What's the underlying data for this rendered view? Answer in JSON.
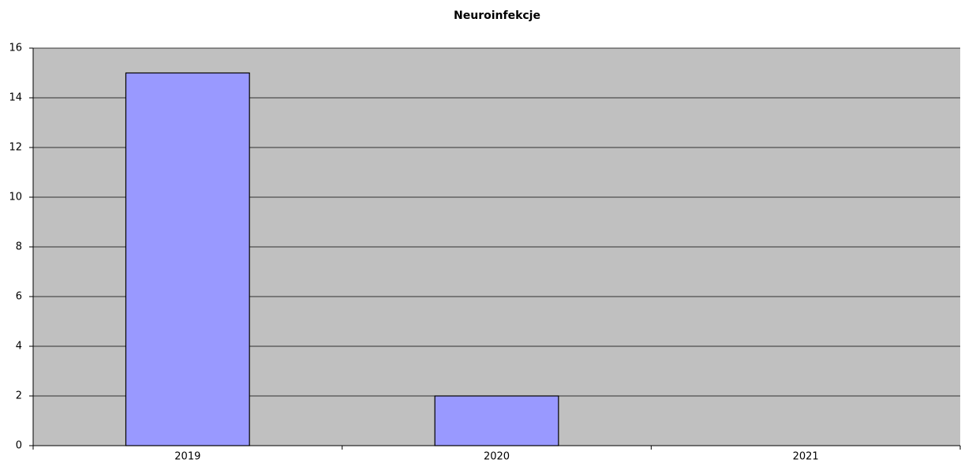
{
  "chart_data": {
    "type": "bar",
    "title": "Neuroinfekcje",
    "categories": [
      "2019",
      "2020",
      "2021"
    ],
    "values": [
      15,
      2,
      0
    ],
    "color": "#9999ff",
    "ylim": [
      0,
      16
    ],
    "yticks": [
      0,
      2,
      4,
      6,
      8,
      10,
      12,
      14,
      16
    ],
    "grid": true
  }
}
